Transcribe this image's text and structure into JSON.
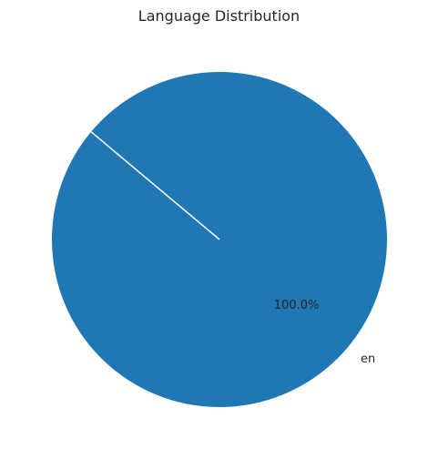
{
  "chart_data": {
    "type": "pie",
    "title": "Language Distribution",
    "slices": [
      {
        "label": "en",
        "value": 100.0,
        "percent_label": "100.0%"
      }
    ],
    "colors": {
      "slice": "#1f77b4",
      "edge": "#ffffff",
      "text": "#262626"
    },
    "start_angle_deg": 140,
    "legend": "none"
  }
}
